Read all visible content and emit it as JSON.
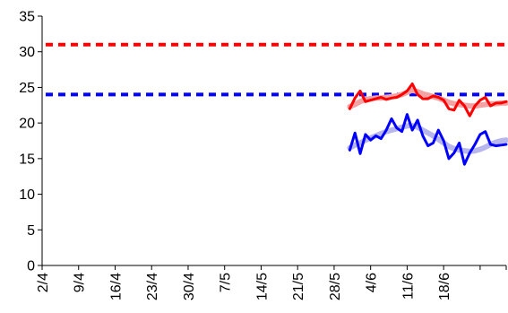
{
  "chart_data": {
    "type": "line",
    "title": "",
    "xlabel": "",
    "ylabel": "",
    "ylim": [
      0,
      35
    ],
    "y_ticks": [
      0,
      5,
      10,
      15,
      20,
      25,
      30,
      35
    ],
    "x_range": [
      "2/4",
      "30/6"
    ],
    "x_tick_labels": [
      "2/4",
      "9/4",
      "16/4",
      "23/4",
      "30/4",
      "7/5",
      "14/5",
      "21/5",
      "28/5",
      "4/6",
      "11/6",
      "18/6"
    ],
    "grid": false,
    "legend": "none",
    "reference_lines": [
      {
        "y": 31,
        "color": "#ff0000",
        "style": "dashed"
      },
      {
        "y": 24,
        "color": "#0000ff",
        "style": "dashed"
      }
    ],
    "x": [
      "31/5",
      "1/6",
      "2/6",
      "3/6",
      "4/6",
      "5/6",
      "6/6",
      "7/6",
      "8/6",
      "9/6",
      "10/6",
      "11/6",
      "12/6",
      "13/6",
      "14/6",
      "15/6",
      "16/6",
      "17/6",
      "18/6",
      "19/6",
      "20/6",
      "21/6",
      "22/6",
      "23/6",
      "24/6",
      "25/6",
      "26/6",
      "27/6",
      "28/6",
      "29/6",
      "30/6"
    ],
    "series": [
      {
        "color": "#ff0000",
        "width": 3,
        "values": [
          22.0,
          23.5,
          24.5,
          23.0,
          23.2,
          23.4,
          23.6,
          23.3,
          23.5,
          23.6,
          24.0,
          24.5,
          25.5,
          24.0,
          23.4,
          23.4,
          23.8,
          23.6,
          23.2,
          22.0,
          21.8,
          23.2,
          22.4,
          21.0,
          22.4,
          23.2,
          23.6,
          22.4,
          22.8,
          22.8,
          23.0
        ]
      },
      {
        "color": "#f3a3a3",
        "width": 6,
        "values": [
          22.3,
          22.6,
          23.0,
          23.3,
          23.4,
          23.5,
          23.5,
          23.6,
          23.7,
          23.8,
          24.0,
          24.3,
          24.6,
          24.4,
          24.1,
          23.9,
          23.7,
          23.5,
          23.2,
          22.9,
          22.7,
          22.6,
          22.5,
          22.4,
          22.4,
          22.5,
          22.6,
          22.7,
          22.7,
          22.8,
          22.8
        ]
      },
      {
        "color": "#0000ff",
        "width": 3,
        "values": [
          16.2,
          18.6,
          15.7,
          18.4,
          17.6,
          18.2,
          17.8,
          19.0,
          20.6,
          19.3,
          18.8,
          21.2,
          19.0,
          20.4,
          18.2,
          16.8,
          17.2,
          19.0,
          17.5,
          15.0,
          15.8,
          17.2,
          14.2,
          15.8,
          17.0,
          18.4,
          18.8,
          17.0,
          16.8,
          16.9,
          17.0
        ]
      },
      {
        "color": "#b7b7ee",
        "width": 6,
        "values": [
          16.5,
          16.9,
          17.2,
          17.6,
          17.9,
          18.2,
          18.5,
          18.8,
          19.0,
          19.2,
          19.4,
          19.6,
          19.6,
          19.4,
          19.0,
          18.6,
          18.2,
          17.7,
          17.2,
          16.7,
          16.4,
          16.2,
          16.1,
          16.0,
          16.1,
          16.3,
          16.6,
          17.0,
          17.3,
          17.5,
          17.6
        ]
      }
    ]
  }
}
